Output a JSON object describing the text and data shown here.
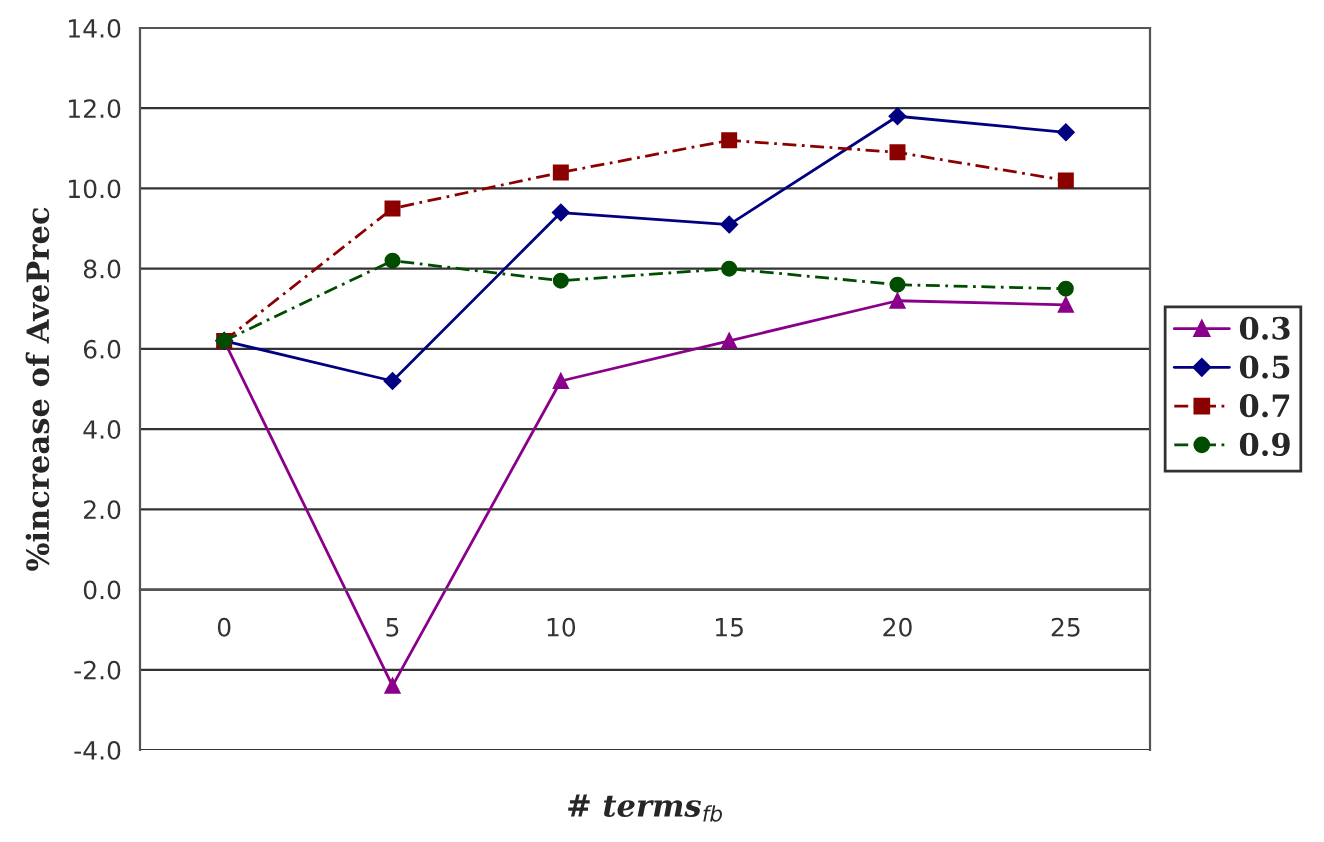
{
  "chart_data": {
    "type": "line",
    "xlabel": "# terms$_{fb}$",
    "ylabel": "%increase of AvePrec",
    "categories": [
      "0",
      "5",
      "10",
      "15",
      "20",
      "25"
    ],
    "series": [
      {
        "name": "0.3",
        "color": "#8b008b",
        "values": [
          6.2,
          -2.4,
          5.2,
          6.2,
          7.2,
          7.1
        ],
        "marker": "triangle",
        "line_style": "solid"
      },
      {
        "name": "0.5",
        "color": "#000080",
        "values": [
          6.2,
          5.2,
          9.4,
          9.1,
          11.8,
          11.4
        ],
        "marker": "diamond",
        "line_style": "solid"
      },
      {
        "name": "0.7",
        "color": "#8b0000",
        "values": [
          6.2,
          9.5,
          10.4,
          11.2,
          10.9,
          10.2
        ],
        "marker": "square",
        "line_style": "dashed"
      },
      {
        "name": "0.9",
        "color": "#004d00",
        "values": [
          6.2,
          8.2,
          7.7,
          8.0,
          7.6,
          7.5
        ],
        "marker": "circle",
        "line_style": "dashed"
      }
    ],
    "ylim": [
      -4,
      14
    ],
    "yticks": [
      {
        "value": -4,
        "label": "-4.0"
      },
      {
        "value": -2,
        "label": "-2.0"
      },
      {
        "value": 0,
        "label": "0.0"
      },
      {
        "value": 2,
        "label": "2.0"
      },
      {
        "value": 4,
        "label": "4.0"
      },
      {
        "value": 6,
        "label": "6.0"
      },
      {
        "value": 8,
        "label": "8.0"
      },
      {
        "value": 10,
        "label": "10.0"
      },
      {
        "value": 12,
        "label": "12.0"
      },
      {
        "value": 14,
        "label": "14.0"
      }
    ],
    "grid": "y",
    "legend": "right"
  }
}
